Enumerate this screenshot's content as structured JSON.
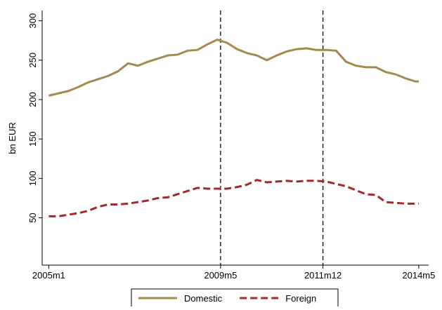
{
  "chart_data": {
    "type": "line",
    "y_label": "bn EUR",
    "x": [
      0,
      3,
      6,
      9,
      12,
      15,
      18,
      21,
      24,
      27,
      30,
      33,
      36,
      39,
      42,
      45,
      48,
      51,
      54,
      57,
      60,
      63,
      66,
      69,
      72,
      75,
      78,
      81,
      84,
      87,
      90,
      93,
      96,
      99,
      102,
      105,
      108,
      111,
      112
    ],
    "series": [
      {
        "name": "Domestic",
        "color": "#a38a4e",
        "dash": false,
        "values": [
          205,
          208,
          211,
          216,
          222,
          226,
          230,
          236,
          246,
          243,
          248,
          252,
          256,
          257,
          262,
          263,
          270,
          276,
          272,
          264,
          259,
          256,
          250,
          256,
          261,
          264,
          265,
          263,
          263,
          262,
          248,
          243,
          241,
          241,
          235,
          232,
          227,
          223,
          223
        ]
      },
      {
        "name": "Foreign",
        "color": "#a3282f",
        "dash": true,
        "values": [
          52,
          52,
          54,
          56,
          59,
          64,
          67,
          67,
          68,
          70,
          72,
          75,
          76,
          80,
          84,
          88,
          87,
          87,
          87,
          89,
          92,
          98,
          95,
          96,
          97,
          96,
          97,
          97,
          96,
          93,
          90,
          85,
          80,
          79,
          70,
          69,
          68,
          68,
          68
        ]
      }
    ],
    "xlim": [
      -2,
      115
    ],
    "xticks": [
      {
        "value": 0,
        "label": "2005m1"
      },
      {
        "value": 52,
        "label": "2009m5"
      },
      {
        "value": 83,
        "label": "2011m12"
      },
      {
        "value": 112,
        "label": "2014m5"
      }
    ],
    "ylim": [
      -10,
      313
    ],
    "yticks": [
      50,
      100,
      150,
      200,
      250,
      300
    ],
    "vlines": [
      52,
      83
    ],
    "grid": false,
    "legend": "bottom"
  }
}
